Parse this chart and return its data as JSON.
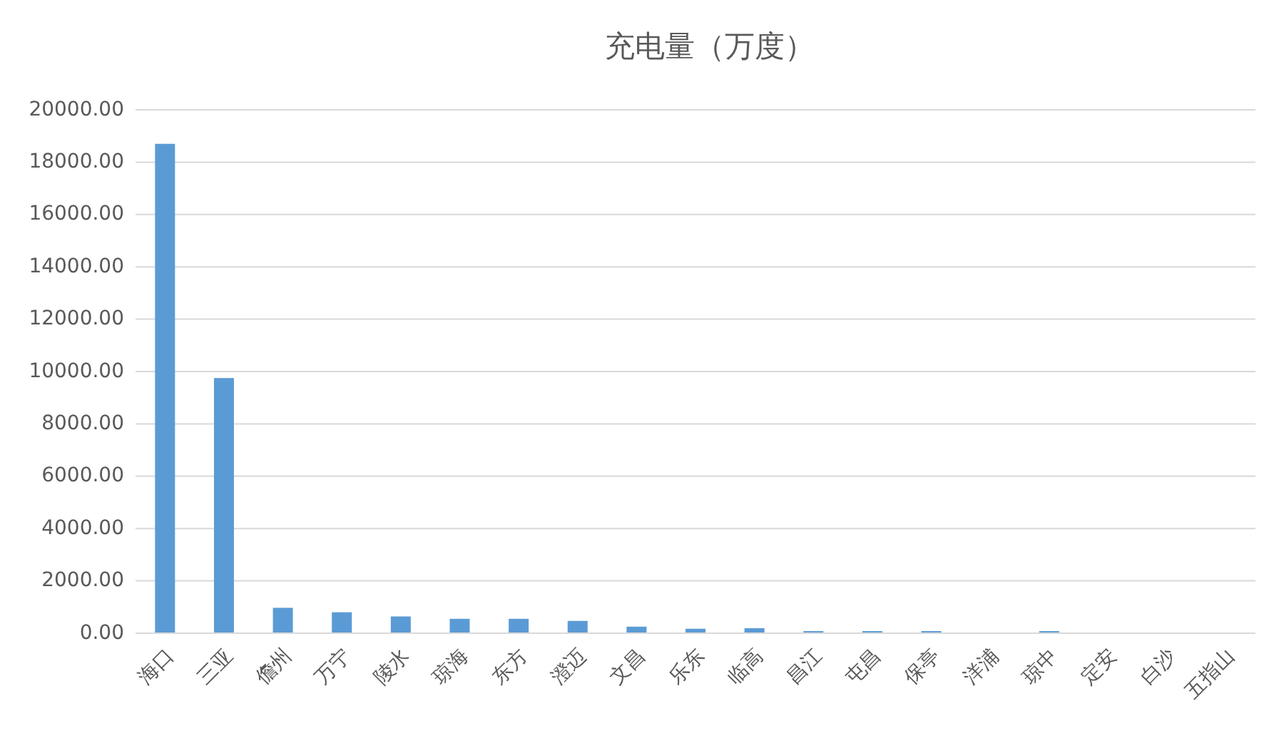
{
  "chart_data": {
    "type": "bar",
    "title": "充电量（万度）",
    "categories": [
      "海口",
      "三亚",
      "儋州",
      "万宁",
      "陵水",
      "琼海",
      "东方",
      "澄迈",
      "文昌",
      "乐东",
      "临高",
      "昌江",
      "屯昌",
      "保亭",
      "洋浦",
      "琼中",
      "定安",
      "白沙",
      "五指山"
    ],
    "values": [
      18700,
      9750,
      970,
      800,
      640,
      550,
      550,
      470,
      250,
      170,
      190,
      80,
      80,
      80,
      0,
      80,
      0,
      0,
      0
    ],
    "color": "#5b9bd5",
    "ylim": [
      0,
      20000
    ],
    "yticks": [
      {
        "value": 0,
        "label": "0.00"
      },
      {
        "value": 2000,
        "label": "2000.00"
      },
      {
        "value": 4000,
        "label": "4000.00"
      },
      {
        "value": 6000,
        "label": "6000.00"
      },
      {
        "value": 8000,
        "label": "8000.00"
      },
      {
        "value": 10000,
        "label": "10000.00"
      },
      {
        "value": 12000,
        "label": "12000.00"
      },
      {
        "value": 14000,
        "label": "14000.00"
      },
      {
        "value": 16000,
        "label": "16000.00"
      },
      {
        "value": 18000,
        "label": "18000.00"
      },
      {
        "value": 20000,
        "label": "20000.00"
      }
    ],
    "grid": "y"
  }
}
